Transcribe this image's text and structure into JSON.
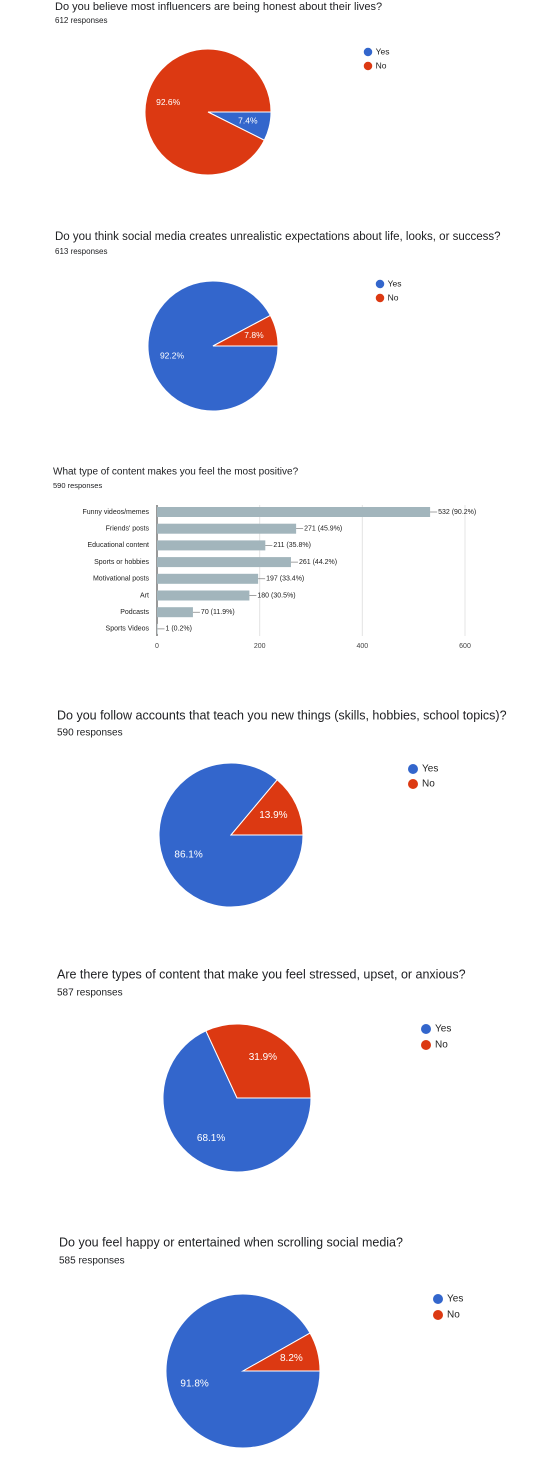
{
  "chart_data": [
    {
      "type": "pie",
      "title": "Do you believe most influencers are being honest about their lives?",
      "subtitle": "612 responses",
      "categories": [
        "Yes",
        "No"
      ],
      "values": [
        7.4,
        92.6
      ],
      "value_labels": [
        "7.4%",
        "92.6%"
      ],
      "colors": [
        "#3366cc",
        "#dc3912"
      ]
    },
    {
      "type": "pie",
      "title": "Do you think social media creates unrealistic expectations about life, looks, or success?",
      "subtitle": "613 responses",
      "categories": [
        "Yes",
        "No"
      ],
      "values": [
        92.2,
        7.8
      ],
      "value_labels": [
        "92.2%",
        "7.8%"
      ],
      "colors": [
        "#3366cc",
        "#dc3912"
      ]
    },
    {
      "type": "hbar",
      "title": "What type of content makes you feel the most positive?",
      "subtitle": "590 responses",
      "categories": [
        "Funny videos/memes",
        "Friends' posts",
        "Educational content",
        "Sports or hobbies",
        "Motivational posts",
        "Art",
        "Podcasts",
        "Sports Videos"
      ],
      "values": [
        532,
        271,
        211,
        261,
        197,
        180,
        70,
        1
      ],
      "value_labels": [
        "532 (90.2%)",
        "271 (45.9%)",
        "211 (35.8%)",
        "261 (44.2%)",
        "197 (33.4%)",
        "180 (30.5%)",
        "70 (11.9%)",
        "1 (0.2%)"
      ],
      "color": "#a2b5bc",
      "xlim": [
        0,
        600
      ],
      "xticks": [
        0,
        200,
        400,
        600
      ],
      "grid": true
    },
    {
      "type": "pie",
      "title": "Do you follow accounts that teach you new things (skills, hobbies, school topics)?",
      "subtitle": "590 responses",
      "categories": [
        "Yes",
        "No"
      ],
      "values": [
        86.1,
        13.9
      ],
      "value_labels": [
        "86.1%",
        "13.9%"
      ],
      "colors": [
        "#3366cc",
        "#dc3912"
      ]
    },
    {
      "type": "pie",
      "title": "Are there types of content that make you feel stressed, upset, or anxious?",
      "subtitle": "587 responses",
      "categories": [
        "Yes",
        "No"
      ],
      "values": [
        68.1,
        31.9
      ],
      "value_labels": [
        "68.1%",
        "31.9%"
      ],
      "colors": [
        "#3366cc",
        "#dc3912"
      ]
    },
    {
      "type": "pie",
      "title": "Do you feel happy or entertained when scrolling social media?",
      "subtitle": "585 responses",
      "categories": [
        "Yes",
        "No"
      ],
      "values": [
        91.8,
        8.2
      ],
      "value_labels": [
        "91.8%",
        "8.2%"
      ],
      "colors": [
        "#3366cc",
        "#dc3912"
      ]
    }
  ]
}
